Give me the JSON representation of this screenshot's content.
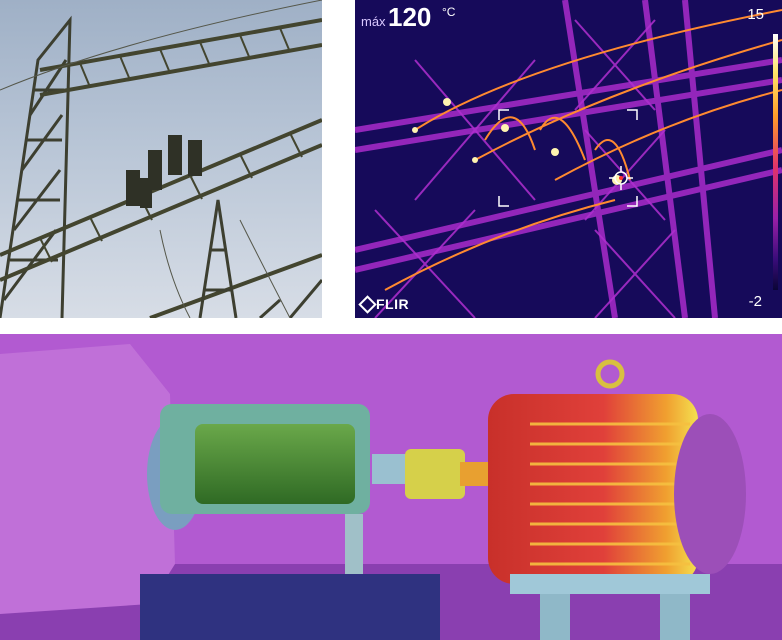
{
  "thermal_overlay": {
    "max_label": "máx",
    "max_value": "120",
    "max_unit": "°C",
    "scale_max": "15",
    "scale_min": "-2",
    "brand_logo": "FLIR"
  },
  "colors": {
    "thermal_background": "#160a5a",
    "thermal_structure": "#b02fd0",
    "hotspot": "#fff4b0",
    "motor_background": "#b25ad1",
    "motor_hot": "#e03a2a",
    "motor_cool": "#3f8a2a"
  }
}
